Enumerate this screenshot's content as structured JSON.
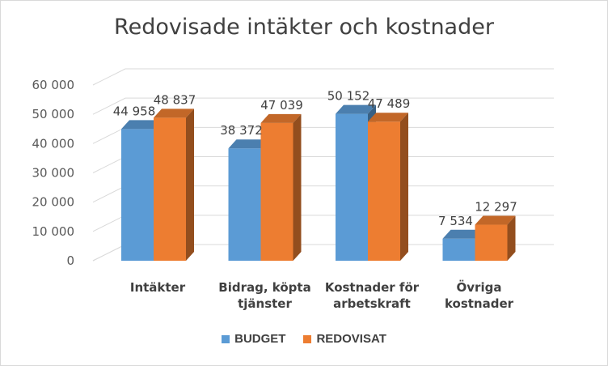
{
  "chart_data": {
    "type": "bar",
    "title": "Redovisade intäkter och kostnader",
    "categories": [
      [
        "Intäkter"
      ],
      [
        "Bidrag, köpta",
        "tjänster"
      ],
      [
        "Kostnader för",
        "arbetskraft"
      ],
      [
        "Övriga",
        "kostnader"
      ]
    ],
    "series": [
      {
        "name": "BUDGET",
        "values": [
          44958,
          38372,
          50152,
          7534
        ],
        "labels": [
          "44 958",
          "38 372",
          "50 152",
          "7 534"
        ],
        "color": "#5b9bd5"
      },
      {
        "name": "REDOVISAT",
        "values": [
          48837,
          47039,
          47489,
          12297
        ],
        "labels": [
          "48 837",
          "47 039",
          "47 489",
          "12 297"
        ],
        "color": "#ed7d31"
      }
    ],
    "yticks": [
      "0",
      "10 000",
      "20 000",
      "30 000",
      "40 000",
      "50 000",
      "60 000"
    ],
    "ylim": [
      0,
      60000
    ],
    "grid": true,
    "legend_position": "bottom"
  }
}
